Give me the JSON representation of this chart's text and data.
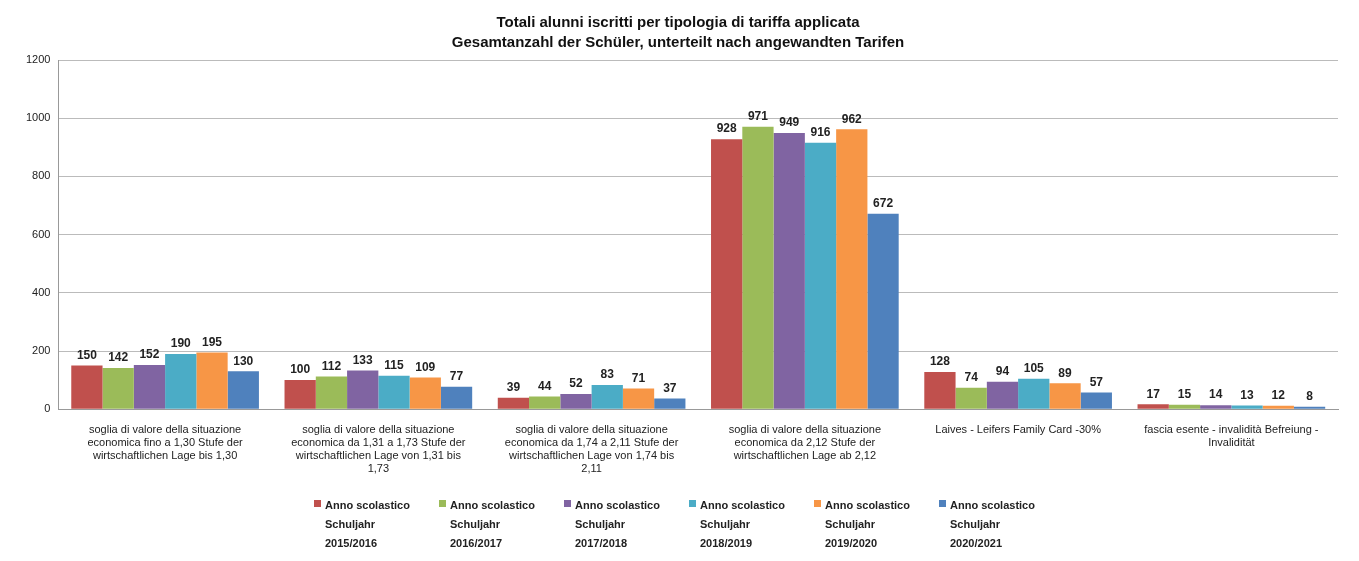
{
  "chart_data": {
    "type": "bar",
    "title": "Totali alunni iscritti per tipologia di tariffa applicata",
    "subtitle": "Gesamtanzahl der Schüler, unterteilt nach angewandten Tarifen",
    "categories": [
      "soglia di valore della situazione economica fino a 1,30 Stufe der wirtschaftlichen Lage bis 1,30",
      "soglia di valore della situazione economica da 1,31 a 1,73 Stufe der wirtschaftlichen Lage von 1,31 bis 1,73",
      "soglia di valore della situazione economica da 1,74 a 2,11 Stufe der wirtschaftlichen Lage von 1,74 bis 2,11",
      "soglia di valore della situazione economica da 2,12 Stufe der wirtschaftlichen Lage ab 2,12",
      "Laives - Leifers Family Card -30%",
      "fascia esente - invalidità Befreiung - Invalidität"
    ],
    "series": [
      {
        "name": "Anno scolastico Schuljahr 2015/2016",
        "color": "#c0504d",
        "values": [
          150,
          100,
          39,
          928,
          128,
          17
        ]
      },
      {
        "name": "Anno scolastico Schuljahr 2016/2017",
        "color": "#9bbb59",
        "values": [
          142,
          112,
          44,
          971,
          74,
          15
        ]
      },
      {
        "name": "Anno scolastico Schuljahr 2017/2018",
        "color": "#8064a2",
        "values": [
          152,
          133,
          52,
          949,
          94,
          14
        ]
      },
      {
        "name": "Anno scolastico Schuljahr 2018/2019",
        "color": "#4bacc6",
        "values": [
          190,
          115,
          83,
          916,
          105,
          13
        ]
      },
      {
        "name": "Anno scolastico Schuljahr 2019/2020",
        "color": "#f79646",
        "values": [
          195,
          109,
          71,
          962,
          89,
          12
        ]
      },
      {
        "name": "Anno scolastico Schuljahr 2020/2021",
        "color": "#4f81bd",
        "values": [
          130,
          77,
          37,
          672,
          57,
          8
        ]
      }
    ],
    "ylim": [
      0,
      1200
    ],
    "yticks": [
      0,
      200,
      400,
      600,
      800,
      1000,
      1200
    ],
    "grid": "y",
    "legend": "bottom",
    "data_labels": true
  }
}
